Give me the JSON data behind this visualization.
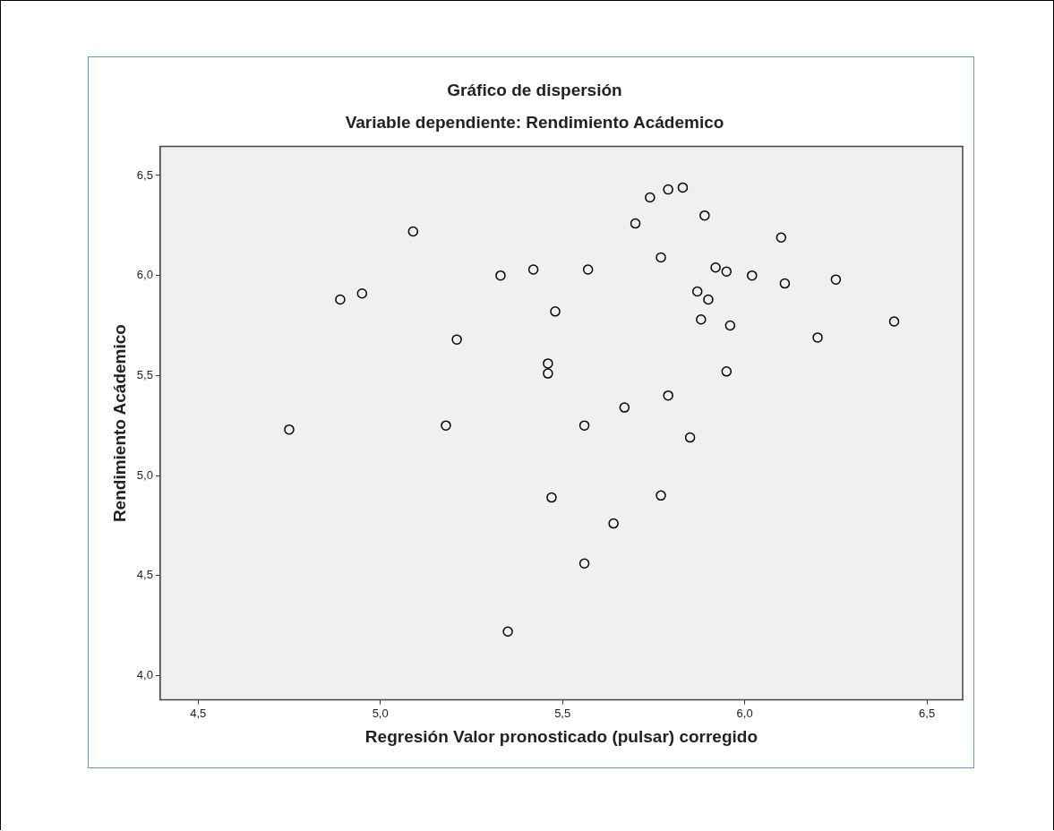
{
  "chart_data": {
    "type": "scatter",
    "title": "Gráfico de dispersión",
    "subtitle": "Variable dependiente: Rendimiento Acádemico",
    "xlabel": "Regresión Valor pronosticado (pulsar) corregido",
    "ylabel": "Rendimiento Acádemico",
    "x": [
      4.75,
      4.89,
      4.95,
      5.09,
      5.18,
      5.21,
      5.33,
      5.35,
      5.42,
      5.46,
      5.46,
      5.47,
      5.48,
      5.56,
      5.56,
      5.57,
      5.64,
      5.67,
      5.7,
      5.74,
      5.77,
      5.77,
      5.79,
      5.79,
      5.83,
      5.85,
      5.87,
      5.88,
      5.89,
      5.9,
      5.92,
      5.95,
      5.95,
      5.96,
      6.02,
      6.1,
      6.11,
      6.2,
      6.25,
      6.41
    ],
    "values": [
      5.23,
      5.88,
      5.91,
      6.22,
      5.25,
      5.68,
      6.0,
      4.22,
      6.03,
      5.56,
      5.51,
      4.89,
      5.82,
      5.25,
      4.56,
      6.03,
      4.76,
      5.34,
      6.26,
      6.39,
      4.9,
      6.09,
      6.43,
      5.4,
      6.44,
      5.19,
      5.92,
      5.78,
      6.3,
      5.88,
      6.04,
      6.02,
      5.52,
      5.75,
      6.0,
      6.19,
      5.96,
      5.69,
      5.98,
      5.77
    ],
    "color": "#000000",
    "marker": "circle",
    "xlim": [
      4.396,
      6.598
    ],
    "xticks": [
      {
        "value": 4.5,
        "label": "4,5"
      },
      {
        "value": 5.0,
        "label": "5,0"
      },
      {
        "value": 5.5,
        "label": "5,5"
      },
      {
        "value": 6.0,
        "label": "6,0"
      },
      {
        "value": 6.5,
        "label": "6,5"
      }
    ],
    "ylim": [
      3.878,
      6.645
    ],
    "yticks": [
      {
        "value": 4.0,
        "label": "4,0"
      },
      {
        "value": 4.5,
        "label": "4,5"
      },
      {
        "value": 5.0,
        "label": "5,0"
      },
      {
        "value": 5.5,
        "label": "5,5"
      },
      {
        "value": 6.0,
        "label": "6,0"
      },
      {
        "value": 6.5,
        "label": "6,5"
      }
    ],
    "legend": false
  }
}
